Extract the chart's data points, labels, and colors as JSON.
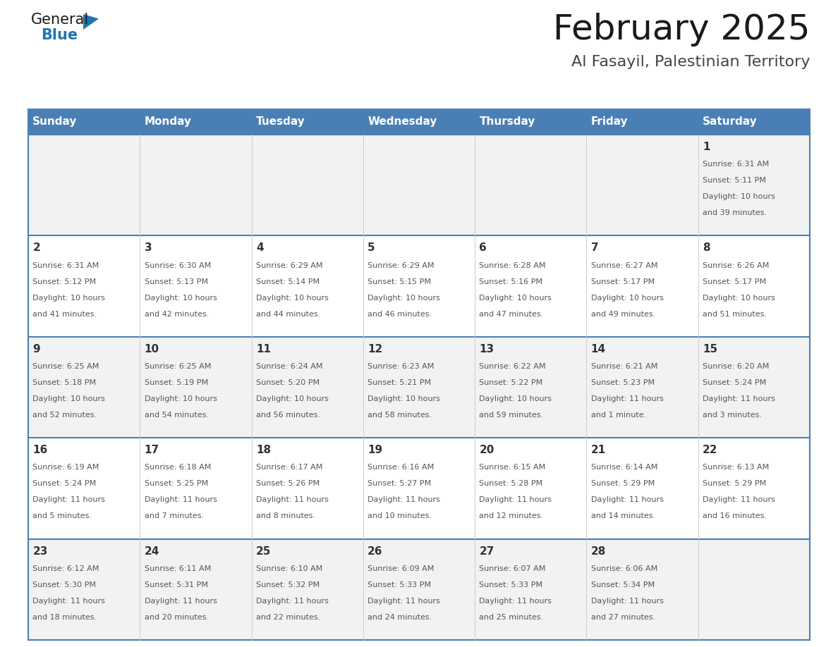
{
  "title": "February 2025",
  "subtitle": "Al Fasayil, Palestinian Territory",
  "days_of_week": [
    "Sunday",
    "Monday",
    "Tuesday",
    "Wednesday",
    "Thursday",
    "Friday",
    "Saturday"
  ],
  "header_bg": "#4A7FB5",
  "header_text": "#FFFFFF",
  "cell_bg_odd": "#F2F2F2",
  "cell_bg_even": "#FFFFFF",
  "border_color": "#4A7FB5",
  "row_border_color": "#4A7FB5",
  "text_color": "#555555",
  "day_number_color": "#333333",
  "col_sep_color": "#CCCCCC",
  "calendar_data": [
    [
      null,
      null,
      null,
      null,
      null,
      null,
      {
        "day": 1,
        "sunrise": "6:31 AM",
        "sunset": "5:11 PM",
        "daylight": "10 hours and 39 minutes."
      }
    ],
    [
      {
        "day": 2,
        "sunrise": "6:31 AM",
        "sunset": "5:12 PM",
        "daylight": "10 hours and 41 minutes."
      },
      {
        "day": 3,
        "sunrise": "6:30 AM",
        "sunset": "5:13 PM",
        "daylight": "10 hours and 42 minutes."
      },
      {
        "day": 4,
        "sunrise": "6:29 AM",
        "sunset": "5:14 PM",
        "daylight": "10 hours and 44 minutes."
      },
      {
        "day": 5,
        "sunrise": "6:29 AM",
        "sunset": "5:15 PM",
        "daylight": "10 hours and 46 minutes."
      },
      {
        "day": 6,
        "sunrise": "6:28 AM",
        "sunset": "5:16 PM",
        "daylight": "10 hours and 47 minutes."
      },
      {
        "day": 7,
        "sunrise": "6:27 AM",
        "sunset": "5:17 PM",
        "daylight": "10 hours and 49 minutes."
      },
      {
        "day": 8,
        "sunrise": "6:26 AM",
        "sunset": "5:17 PM",
        "daylight": "10 hours and 51 minutes."
      }
    ],
    [
      {
        "day": 9,
        "sunrise": "6:25 AM",
        "sunset": "5:18 PM",
        "daylight": "10 hours and 52 minutes."
      },
      {
        "day": 10,
        "sunrise": "6:25 AM",
        "sunset": "5:19 PM",
        "daylight": "10 hours and 54 minutes."
      },
      {
        "day": 11,
        "sunrise": "6:24 AM",
        "sunset": "5:20 PM",
        "daylight": "10 hours and 56 minutes."
      },
      {
        "day": 12,
        "sunrise": "6:23 AM",
        "sunset": "5:21 PM",
        "daylight": "10 hours and 58 minutes."
      },
      {
        "day": 13,
        "sunrise": "6:22 AM",
        "sunset": "5:22 PM",
        "daylight": "10 hours and 59 minutes."
      },
      {
        "day": 14,
        "sunrise": "6:21 AM",
        "sunset": "5:23 PM",
        "daylight": "11 hours and 1 minute."
      },
      {
        "day": 15,
        "sunrise": "6:20 AM",
        "sunset": "5:24 PM",
        "daylight": "11 hours and 3 minutes."
      }
    ],
    [
      {
        "day": 16,
        "sunrise": "6:19 AM",
        "sunset": "5:24 PM",
        "daylight": "11 hours and 5 minutes."
      },
      {
        "day": 17,
        "sunrise": "6:18 AM",
        "sunset": "5:25 PM",
        "daylight": "11 hours and 7 minutes."
      },
      {
        "day": 18,
        "sunrise": "6:17 AM",
        "sunset": "5:26 PM",
        "daylight": "11 hours and 8 minutes."
      },
      {
        "day": 19,
        "sunrise": "6:16 AM",
        "sunset": "5:27 PM",
        "daylight": "11 hours and 10 minutes."
      },
      {
        "day": 20,
        "sunrise": "6:15 AM",
        "sunset": "5:28 PM",
        "daylight": "11 hours and 12 minutes."
      },
      {
        "day": 21,
        "sunrise": "6:14 AM",
        "sunset": "5:29 PM",
        "daylight": "11 hours and 14 minutes."
      },
      {
        "day": 22,
        "sunrise": "6:13 AM",
        "sunset": "5:29 PM",
        "daylight": "11 hours and 16 minutes."
      }
    ],
    [
      {
        "day": 23,
        "sunrise": "6:12 AM",
        "sunset": "5:30 PM",
        "daylight": "11 hours and 18 minutes."
      },
      {
        "day": 24,
        "sunrise": "6:11 AM",
        "sunset": "5:31 PM",
        "daylight": "11 hours and 20 minutes."
      },
      {
        "day": 25,
        "sunrise": "6:10 AM",
        "sunset": "5:32 PM",
        "daylight": "11 hours and 22 minutes."
      },
      {
        "day": 26,
        "sunrise": "6:09 AM",
        "sunset": "5:33 PM",
        "daylight": "11 hours and 24 minutes."
      },
      {
        "day": 27,
        "sunrise": "6:07 AM",
        "sunset": "5:33 PM",
        "daylight": "11 hours and 25 minutes."
      },
      {
        "day": 28,
        "sunrise": "6:06 AM",
        "sunset": "5:34 PM",
        "daylight": "11 hours and 27 minutes."
      },
      null
    ]
  ],
  "logo_general_color": "#1a1a1a",
  "logo_blue_color": "#2176AE",
  "logo_triangle_color": "#2176AE",
  "title_fontsize": 36,
  "subtitle_fontsize": 16,
  "header_fontsize": 11,
  "day_num_fontsize": 11,
  "cell_text_fontsize": 8
}
